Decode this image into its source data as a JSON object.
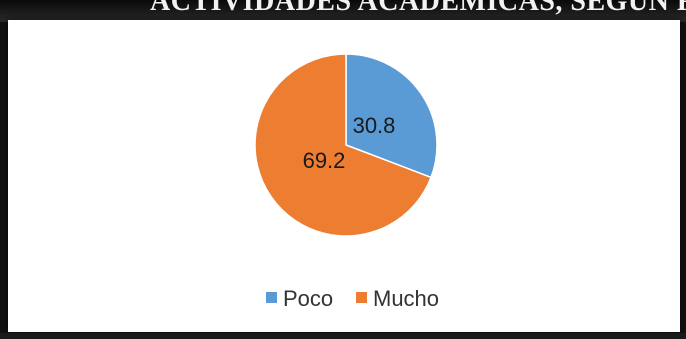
{
  "header": {
    "title_fragment": "ACTIVIDADES ACADÉMICAS, SEGÚN FRE"
  },
  "chart_data": {
    "type": "pie",
    "title": "",
    "slices": [
      {
        "label": "Poco",
        "value": 30.8,
        "color": "#5b9bd5"
      },
      {
        "label": "Mucho",
        "value": 69.2,
        "color": "#ed7d31"
      }
    ],
    "legend": "bottom"
  }
}
